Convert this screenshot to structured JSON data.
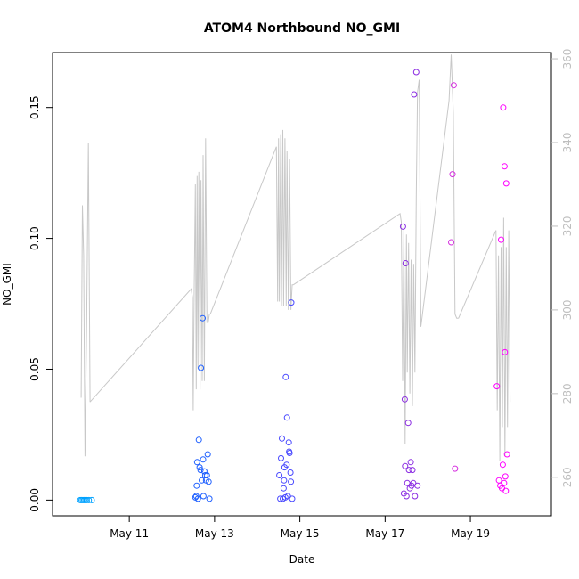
{
  "chart_data": {
    "type": "scatter",
    "title": "ATOM4 Northbound NO_GMI",
    "xlabel": "Date",
    "ylabel": "NO_GMI",
    "xlim": [
      9.2,
      20.9
    ],
    "ylim": [
      -0.006,
      0.171
    ],
    "x_ticks": [
      {
        "value": 11,
        "label": "May 11"
      },
      {
        "value": 13,
        "label": "May 13"
      },
      {
        "value": 15,
        "label": "May 15"
      },
      {
        "value": 17,
        "label": "May 17"
      },
      {
        "value": 19,
        "label": "May 19"
      }
    ],
    "y_ticks": [
      {
        "value": 0.0,
        "label": "0.00"
      },
      {
        "value": 0.05,
        "label": "0.05"
      },
      {
        "value": 0.1,
        "label": "0.10"
      },
      {
        "value": 0.15,
        "label": "0.15"
      }
    ],
    "y2lim": [
      250.8,
      361.5
    ],
    "y2_ticks": [
      {
        "value": 260,
        "label": "260"
      },
      {
        "value": 280,
        "label": "280"
      },
      {
        "value": 300,
        "label": "300"
      },
      {
        "value": 320,
        "label": "320"
      },
      {
        "value": 340,
        "label": "340"
      },
      {
        "value": 360,
        "label": "360"
      }
    ],
    "grid": false,
    "points": [
      {
        "x": 9.85,
        "y": 0.0,
        "color": "#00a2ff"
      },
      {
        "x": 9.88,
        "y": 0.0,
        "color": "#00a2ff"
      },
      {
        "x": 9.91,
        "y": 0.0,
        "color": "#00a2ff"
      },
      {
        "x": 9.94,
        "y": 0.0,
        "color": "#00a2ff"
      },
      {
        "x": 9.97,
        "y": 0.0,
        "color": "#00a2ff"
      },
      {
        "x": 10.0,
        "y": 0.0,
        "color": "#00a2ff"
      },
      {
        "x": 10.05,
        "y": 0.0,
        "color": "#00a2ff"
      },
      {
        "x": 10.12,
        "y": 0.0,
        "color": "#00a2ff"
      },
      {
        "x": 12.55,
        "y": 0.001,
        "color": "#1f60ff"
      },
      {
        "x": 12.57,
        "y": 0.0015,
        "color": "#1f60ff"
      },
      {
        "x": 12.58,
        "y": 0.0055,
        "color": "#1f60ff"
      },
      {
        "x": 12.59,
        "y": 0.0145,
        "color": "#1f60ff"
      },
      {
        "x": 12.61,
        "y": 0.0005,
        "color": "#1f60ff"
      },
      {
        "x": 12.63,
        "y": 0.023,
        "color": "#1f60ff"
      },
      {
        "x": 12.65,
        "y": 0.0125,
        "color": "#1f60ff"
      },
      {
        "x": 12.67,
        "y": 0.0115,
        "color": "#1f60ff"
      },
      {
        "x": 12.68,
        "y": 0.0505,
        "color": "#1f60ff"
      },
      {
        "x": 12.7,
        "y": 0.0075,
        "color": "#1f60ff"
      },
      {
        "x": 12.72,
        "y": 0.0695,
        "color": "#1f60ff"
      },
      {
        "x": 12.73,
        "y": 0.0155,
        "color": "#1f60ff"
      },
      {
        "x": 12.74,
        "y": 0.0015,
        "color": "#1f60ff"
      },
      {
        "x": 12.76,
        "y": 0.011,
        "color": "#1f60ff"
      },
      {
        "x": 12.78,
        "y": 0.0095,
        "color": "#1f60ff"
      },
      {
        "x": 12.8,
        "y": 0.0075,
        "color": "#1f60ff"
      },
      {
        "x": 12.82,
        "y": 0.0095,
        "color": "#1f60ff"
      },
      {
        "x": 12.84,
        "y": 0.0175,
        "color": "#1f60ff"
      },
      {
        "x": 12.86,
        "y": 0.007,
        "color": "#1f60ff"
      },
      {
        "x": 12.88,
        "y": 0.0005,
        "color": "#1f60ff"
      },
      {
        "x": 14.52,
        "y": 0.0095,
        "color": "#4848ff"
      },
      {
        "x": 14.54,
        "y": 0.0005,
        "color": "#4848ff"
      },
      {
        "x": 14.56,
        "y": 0.016,
        "color": "#4848ff"
      },
      {
        "x": 14.58,
        "y": 0.0235,
        "color": "#4848ff"
      },
      {
        "x": 14.6,
        "y": 0.0005,
        "color": "#4848ff"
      },
      {
        "x": 14.62,
        "y": 0.0045,
        "color": "#4848ff"
      },
      {
        "x": 14.63,
        "y": 0.0075,
        "color": "#4848ff"
      },
      {
        "x": 14.64,
        "y": 0.0125,
        "color": "#4848ff"
      },
      {
        "x": 14.66,
        "y": 0.001,
        "color": "#4848ff"
      },
      {
        "x": 14.67,
        "y": 0.047,
        "color": "#4848ff"
      },
      {
        "x": 14.69,
        "y": 0.0135,
        "color": "#4848ff"
      },
      {
        "x": 14.7,
        "y": 0.0315,
        "color": "#4848ff"
      },
      {
        "x": 14.72,
        "y": 0.0015,
        "color": "#4848ff"
      },
      {
        "x": 14.74,
        "y": 0.022,
        "color": "#4848ff"
      },
      {
        "x": 14.75,
        "y": 0.0185,
        "color": "#4848ff"
      },
      {
        "x": 14.76,
        "y": 0.018,
        "color": "#4848ff"
      },
      {
        "x": 14.78,
        "y": 0.0105,
        "color": "#4848ff"
      },
      {
        "x": 14.79,
        "y": 0.007,
        "color": "#4848ff"
      },
      {
        "x": 14.8,
        "y": 0.0755,
        "color": "#4848ff"
      },
      {
        "x": 14.82,
        "y": 0.0005,
        "color": "#4848ff"
      },
      {
        "x": 17.42,
        "y": 0.1045,
        "color": "#8a2be2"
      },
      {
        "x": 17.44,
        "y": 0.0025,
        "color": "#8a2be2"
      },
      {
        "x": 17.46,
        "y": 0.0385,
        "color": "#8a2be2"
      },
      {
        "x": 17.47,
        "y": 0.013,
        "color": "#8a2be2"
      },
      {
        "x": 17.48,
        "y": 0.0905,
        "color": "#8a2be2"
      },
      {
        "x": 17.5,
        "y": 0.0015,
        "color": "#8a2be2"
      },
      {
        "x": 17.52,
        "y": 0.0065,
        "color": "#8a2be2"
      },
      {
        "x": 17.54,
        "y": 0.0295,
        "color": "#8a2be2"
      },
      {
        "x": 17.56,
        "y": 0.0115,
        "color": "#8a2be2"
      },
      {
        "x": 17.58,
        "y": 0.0045,
        "color": "#8a2be2"
      },
      {
        "x": 17.6,
        "y": 0.0145,
        "color": "#8a2be2"
      },
      {
        "x": 17.62,
        "y": 0.0055,
        "color": "#8a2be2"
      },
      {
        "x": 17.64,
        "y": 0.0115,
        "color": "#8a2be2"
      },
      {
        "x": 17.66,
        "y": 0.0065,
        "color": "#8a2be2"
      },
      {
        "x": 17.68,
        "y": 0.155,
        "color": "#8a2be2"
      },
      {
        "x": 17.7,
        "y": 0.0015,
        "color": "#8a2be2"
      },
      {
        "x": 17.73,
        "y": 0.1635,
        "color": "#8a2be2"
      },
      {
        "x": 17.76,
        "y": 0.0055,
        "color": "#8a2be2"
      },
      {
        "x": 18.55,
        "y": 0.0985,
        "color": "#d62fe0"
      },
      {
        "x": 18.58,
        "y": 0.1245,
        "color": "#d62fe0"
      },
      {
        "x": 18.61,
        "y": 0.1585,
        "color": "#d62fe0"
      },
      {
        "x": 18.64,
        "y": 0.012,
        "color": "#d62fe0"
      },
      {
        "x": 19.62,
        "y": 0.0435,
        "color": "#ff00ff"
      },
      {
        "x": 19.67,
        "y": 0.0075,
        "color": "#ff00ff"
      },
      {
        "x": 19.7,
        "y": 0.0055,
        "color": "#ff00ff"
      },
      {
        "x": 19.72,
        "y": 0.0995,
        "color": "#ff00ff"
      },
      {
        "x": 19.74,
        "y": 0.0045,
        "color": "#ff00ff"
      },
      {
        "x": 19.76,
        "y": 0.0135,
        "color": "#ff00ff"
      },
      {
        "x": 19.77,
        "y": 0.15,
        "color": "#ff00ff"
      },
      {
        "x": 19.79,
        "y": 0.0065,
        "color": "#ff00ff"
      },
      {
        "x": 19.8,
        "y": 0.1275,
        "color": "#ff00ff"
      },
      {
        "x": 19.81,
        "y": 0.0565,
        "color": "#ff00ff"
      },
      {
        "x": 19.82,
        "y": 0.009,
        "color": "#ff00ff"
      },
      {
        "x": 19.83,
        "y": 0.0035,
        "color": "#ff00ff"
      },
      {
        "x": 19.84,
        "y": 0.121,
        "color": "#ff00ff"
      },
      {
        "x": 19.86,
        "y": 0.0175,
        "color": "#ff00ff"
      }
    ],
    "track": {
      "color": "#c8c8c8",
      "segments": [
        {
          "x": [
            9.87,
            9.9,
            9.93,
            9.96,
            10.0,
            10.04,
            10.08
          ],
          "y": [
            279,
            325,
            313,
            265,
            297,
            340,
            278
          ]
        },
        {
          "x": [
            10.08,
            12.45,
            12.48,
            12.5,
            12.52,
            12.55,
            12.57,
            12.59,
            12.61,
            12.63,
            12.66,
            12.68,
            12.71,
            12.73,
            12.76,
            12.79,
            12.82,
            12.85,
            12.88,
            12.9
          ],
          "y": [
            278,
            305,
            303,
            276,
            303,
            330,
            281,
            332,
            286,
            333,
            281,
            331,
            283,
            337,
            283,
            341,
            297,
            297,
            299,
            299
          ]
        },
        {
          "x": [
            12.9,
            14.45,
            14.48,
            14.5,
            14.52,
            14.55,
            14.57,
            14.6,
            14.62,
            14.65,
            14.68,
            14.7,
            14.73,
            14.76,
            14.79,
            14.82,
            14.85
          ],
          "y": [
            299,
            339,
            302,
            341,
            302,
            342,
            301,
            343,
            301,
            341,
            301,
            338,
            300,
            336,
            300,
            306,
            306
          ]
        },
        {
          "x": [
            14.85,
            17.35,
            17.38,
            17.41,
            17.44,
            17.47,
            17.5,
            17.52,
            17.55,
            17.58,
            17.61,
            17.64,
            17.67,
            17.7,
            17.73,
            17.76,
            17.8,
            17.84
          ],
          "y": [
            306,
            323,
            321,
            283,
            320,
            268,
            318,
            285,
            316,
            280,
            312,
            277,
            311,
            285,
            327,
            352,
            355,
            296
          ]
        },
        {
          "x": [
            17.84,
            18.5,
            18.55,
            18.6,
            18.64,
            18.68,
            18.72
          ],
          "y": [
            296,
            350,
            361,
            347,
            299,
            298,
            298
          ]
        },
        {
          "x": [
            18.72,
            19.6,
            19.63,
            19.66,
            19.69,
            19.72,
            19.75,
            19.78,
            19.81,
            19.84,
            19.87,
            19.9,
            19.93
          ],
          "y": [
            298,
            319,
            276,
            313,
            264,
            315,
            272,
            322,
            265,
            315,
            272,
            319,
            278
          ]
        }
      ]
    }
  }
}
